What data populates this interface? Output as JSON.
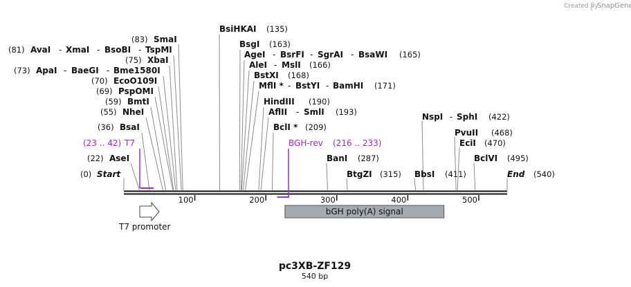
{
  "credit": {
    "prefix": "Created by",
    "brand": "SnapGene"
  },
  "plasmid": {
    "name": "pc3XB-ZF129",
    "length_label": "540 bp"
  },
  "sequence": {
    "length": 540
  },
  "axis": {
    "ticks": [
      100,
      200,
      300,
      400,
      500
    ]
  },
  "sites": [
    {
      "pos_label": "(0)",
      "enzymes": [
        {
          "name": "Start",
          "bp": 0
        }
      ],
      "style": "end"
    },
    {
      "pos_label": "(22)",
      "enzymes": [
        {
          "name": "AseI",
          "bp": 22
        }
      ]
    },
    {
      "pos_label": "(36)",
      "enzymes": [
        {
          "name": "BsaI",
          "bp": 36
        }
      ]
    },
    {
      "pos_label": "(55)",
      "enzymes": [
        {
          "name": "NheI",
          "bp": 55
        }
      ]
    },
    {
      "pos_label": "(59)",
      "enzymes": [
        {
          "name": "BmtI",
          "bp": 59
        }
      ]
    },
    {
      "pos_label": "(69)",
      "enzymes": [
        {
          "name": "PspOMI",
          "bp": 69
        }
      ]
    },
    {
      "pos_label": "(70)",
      "enzymes": [
        {
          "name": "EcoO109I",
          "bp": 70
        }
      ]
    },
    {
      "pos_label": "(73)",
      "enzymes": [
        {
          "name": "ApaI",
          "bp": 73
        },
        {
          "name": "BaeGI",
          "bp": 73
        },
        {
          "name": "Bme1580I",
          "bp": 73
        }
      ]
    },
    {
      "pos_label": "(75)",
      "enzymes": [
        {
          "name": "XbaI",
          "bp": 75
        }
      ]
    },
    {
      "pos_label": "(81)",
      "enzymes": [
        {
          "name": "AvaI",
          "bp": 81
        },
        {
          "name": "XmaI",
          "bp": 81
        },
        {
          "name": "BsoBI",
          "bp": 81
        },
        {
          "name": "TspMI",
          "bp": 81
        }
      ]
    },
    {
      "pos_label": "(83)",
      "enzymes": [
        {
          "name": "SmaI",
          "bp": 83
        }
      ]
    },
    {
      "pos_label": "(135)",
      "enzymes": [
        {
          "name": "BsiHKAI",
          "bp": 135
        }
      ]
    },
    {
      "pos_label": "(163)",
      "enzymes": [
        {
          "name": "BsgI",
          "bp": 163
        }
      ]
    },
    {
      "pos_label": "(165)",
      "enzymes": [
        {
          "name": "AgeI",
          "bp": 165
        },
        {
          "name": "BsrFI",
          "bp": 165
        },
        {
          "name": "SgrAI",
          "bp": 165
        },
        {
          "name": "BsaWI",
          "bp": 165
        }
      ]
    },
    {
      "pos_label": "(166)",
      "enzymes": [
        {
          "name": "AleI",
          "bp": 166
        },
        {
          "name": "MslI",
          "bp": 166
        }
      ]
    },
    {
      "pos_label": "(168)",
      "enzymes": [
        {
          "name": "BstXI",
          "bp": 168
        }
      ]
    },
    {
      "pos_label": "(171)",
      "enzymes": [
        {
          "name": "MflI *",
          "bp": 171
        },
        {
          "name": "BstYI",
          "bp": 171
        },
        {
          "name": "BamHI",
          "bp": 171
        }
      ]
    },
    {
      "pos_label": "(190)",
      "enzymes": [
        {
          "name": "HindIII",
          "bp": 190
        }
      ]
    },
    {
      "pos_label": "(193)",
      "enzymes": [
        {
          "name": "AflII",
          "bp": 193
        },
        {
          "name": "SmlI",
          "bp": 193
        }
      ]
    },
    {
      "pos_label": "(209)",
      "enzymes": [
        {
          "name": "BclI *",
          "bp": 209
        }
      ]
    },
    {
      "pos_label": "(287)",
      "enzymes": [
        {
          "name": "BanI",
          "bp": 287
        }
      ]
    },
    {
      "pos_label": "(315)",
      "enzymes": [
        {
          "name": "BtgZI",
          "bp": 315
        }
      ]
    },
    {
      "pos_label": "(411)",
      "enzymes": [
        {
          "name": "BbsI",
          "bp": 411
        }
      ]
    },
    {
      "pos_label": "(422)",
      "enzymes": [
        {
          "name": "NspI",
          "bp": 422
        },
        {
          "name": "SphI",
          "bp": 422
        }
      ]
    },
    {
      "pos_label": "(468)",
      "enzymes": [
        {
          "name": "PvuII",
          "bp": 468
        }
      ]
    },
    {
      "pos_label": "(470)",
      "enzymes": [
        {
          "name": "EciI",
          "bp": 470
        }
      ]
    },
    {
      "pos_label": "(495)",
      "enzymes": [
        {
          "name": "BclVI",
          "bp": 495
        }
      ]
    },
    {
      "pos_label": "(540)",
      "enzymes": [
        {
          "name": "End",
          "bp": 540
        }
      ],
      "style": "end"
    }
  ],
  "primers": [
    {
      "name": "T7",
      "range_label": "(23 .. 42)",
      "start": 23,
      "end": 42,
      "strand": "forward"
    },
    {
      "name": "BGH-rev",
      "range_label": "(216 .. 233)",
      "start": 216,
      "end": 233,
      "strand": "reverse"
    }
  ],
  "features": [
    {
      "name": "T7 promoter",
      "start": 23,
      "end": 42,
      "kind": "promoter-arrow"
    },
    {
      "name": "bGH poly(A) signal",
      "start": 227,
      "end": 451,
      "kind": "box"
    }
  ],
  "colors": {
    "primer": "#9a2bd1",
    "backbone": "#111111",
    "polyA_fill": "#a5aab0",
    "leader": "#888888"
  }
}
